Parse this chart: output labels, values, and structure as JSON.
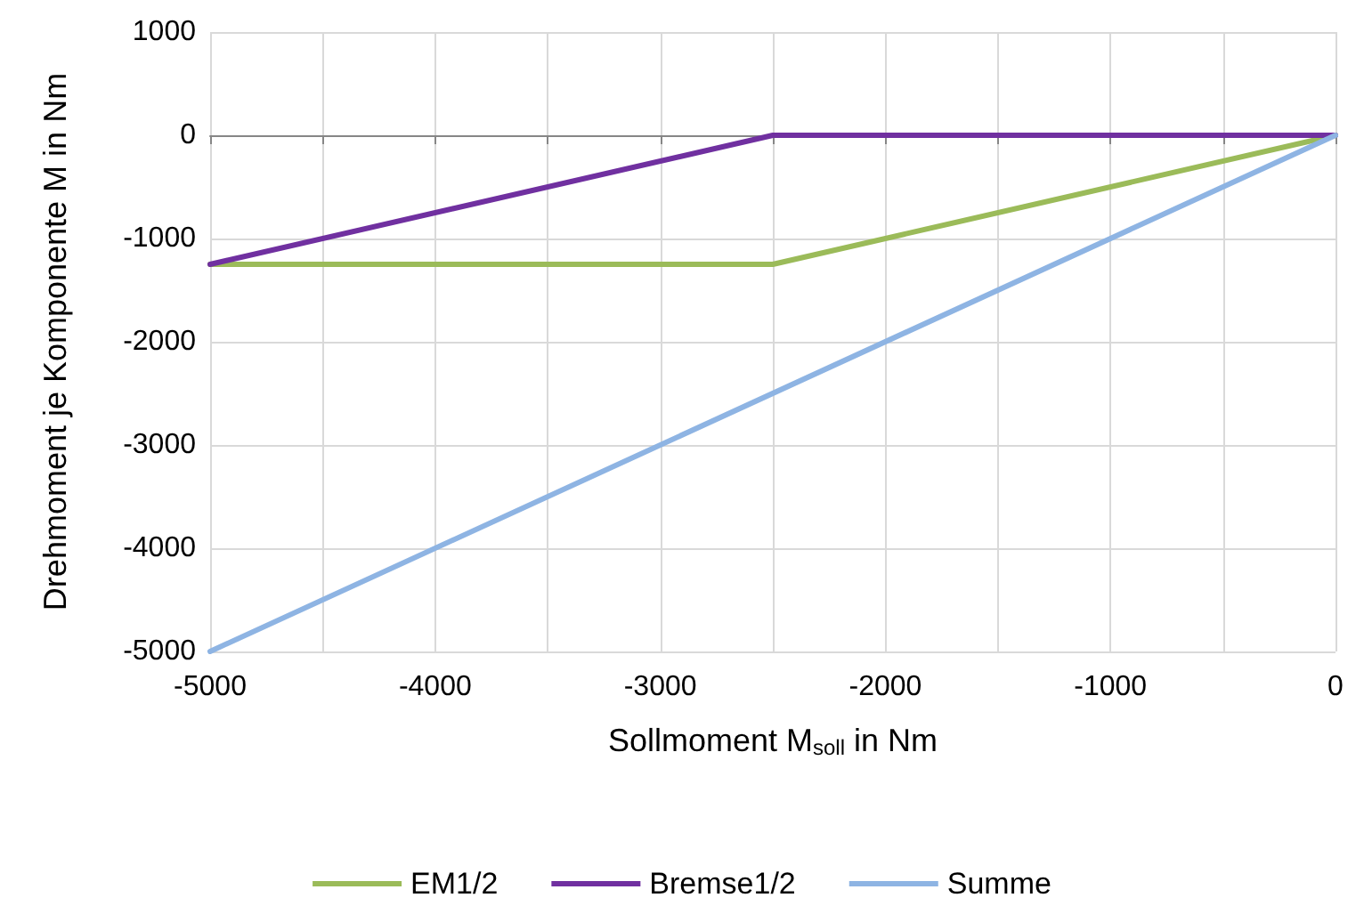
{
  "chart_data": {
    "type": "line",
    "xlabel": "Sollmoment M$_{soll}$ in Nm",
    "ylabel": "Drehmoment je Komponente M in Nm",
    "series": [
      {
        "name": "EM1/2",
        "color": "#9bbb59",
        "x": [
          -5000,
          -2500,
          0
        ],
        "values": [
          -1250,
          -1250,
          0
        ]
      },
      {
        "name": "Bremse1/2",
        "color": "#7030a0",
        "x": [
          -5000,
          -2500,
          0
        ],
        "values": [
          -1250,
          0,
          0
        ]
      },
      {
        "name": "Summe",
        "color": "#8eb4e3",
        "x": [
          -5000,
          0
        ],
        "values": [
          -5000,
          0
        ]
      }
    ],
    "xlim": [
      -5000,
      0
    ],
    "xticks": [
      -5000,
      {
        "value": -4500,
        "label": null
      },
      -4000,
      {
        "value": -3500,
        "label": null
      },
      -3000,
      {
        "value": -2500,
        "label": null
      },
      -2000,
      {
        "value": -1500,
        "label": null
      },
      -1000,
      {
        "value": -500,
        "label": null
      },
      0
    ],
    "ylim": [
      -5000,
      1000
    ],
    "yticks": [
      -5000,
      -4000,
      -3000,
      -2000,
      -1000,
      0,
      1000
    ],
    "grid": true,
    "legend": "bottom",
    "marker": "none",
    "line_style": "solid"
  }
}
